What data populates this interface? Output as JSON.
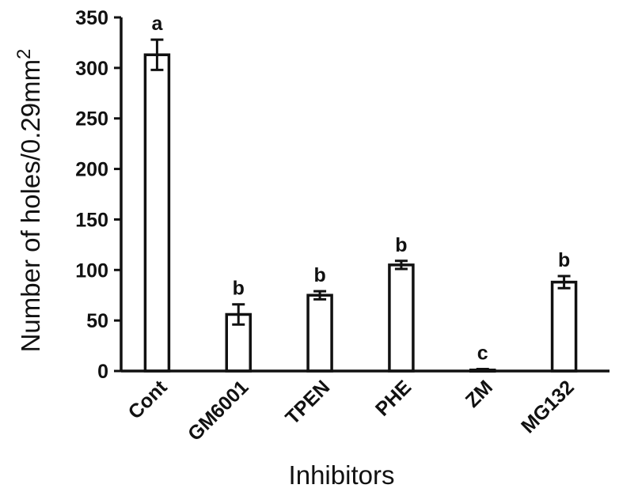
{
  "chart_data": {
    "type": "bar",
    "xlabel": "Inhibitors",
    "ylabel": "Number of holes/0.29mm",
    "ylabel_superscript": "2",
    "ylim": [
      0,
      350
    ],
    "yticks": [
      0,
      50,
      100,
      150,
      200,
      250,
      300,
      350
    ],
    "grid": false,
    "categories": [
      "Cont",
      "GM6001",
      "TPEN",
      "PHE",
      "ZM",
      "MG132"
    ],
    "values": [
      313,
      56,
      75,
      105,
      1,
      88
    ],
    "errors": [
      15,
      10,
      4,
      4,
      1,
      6
    ],
    "significance": [
      "a",
      "b",
      "b",
      "b",
      "c",
      "b"
    ],
    "colors": {
      "bar_fill": "#ffffff",
      "stroke": "#111111"
    }
  }
}
